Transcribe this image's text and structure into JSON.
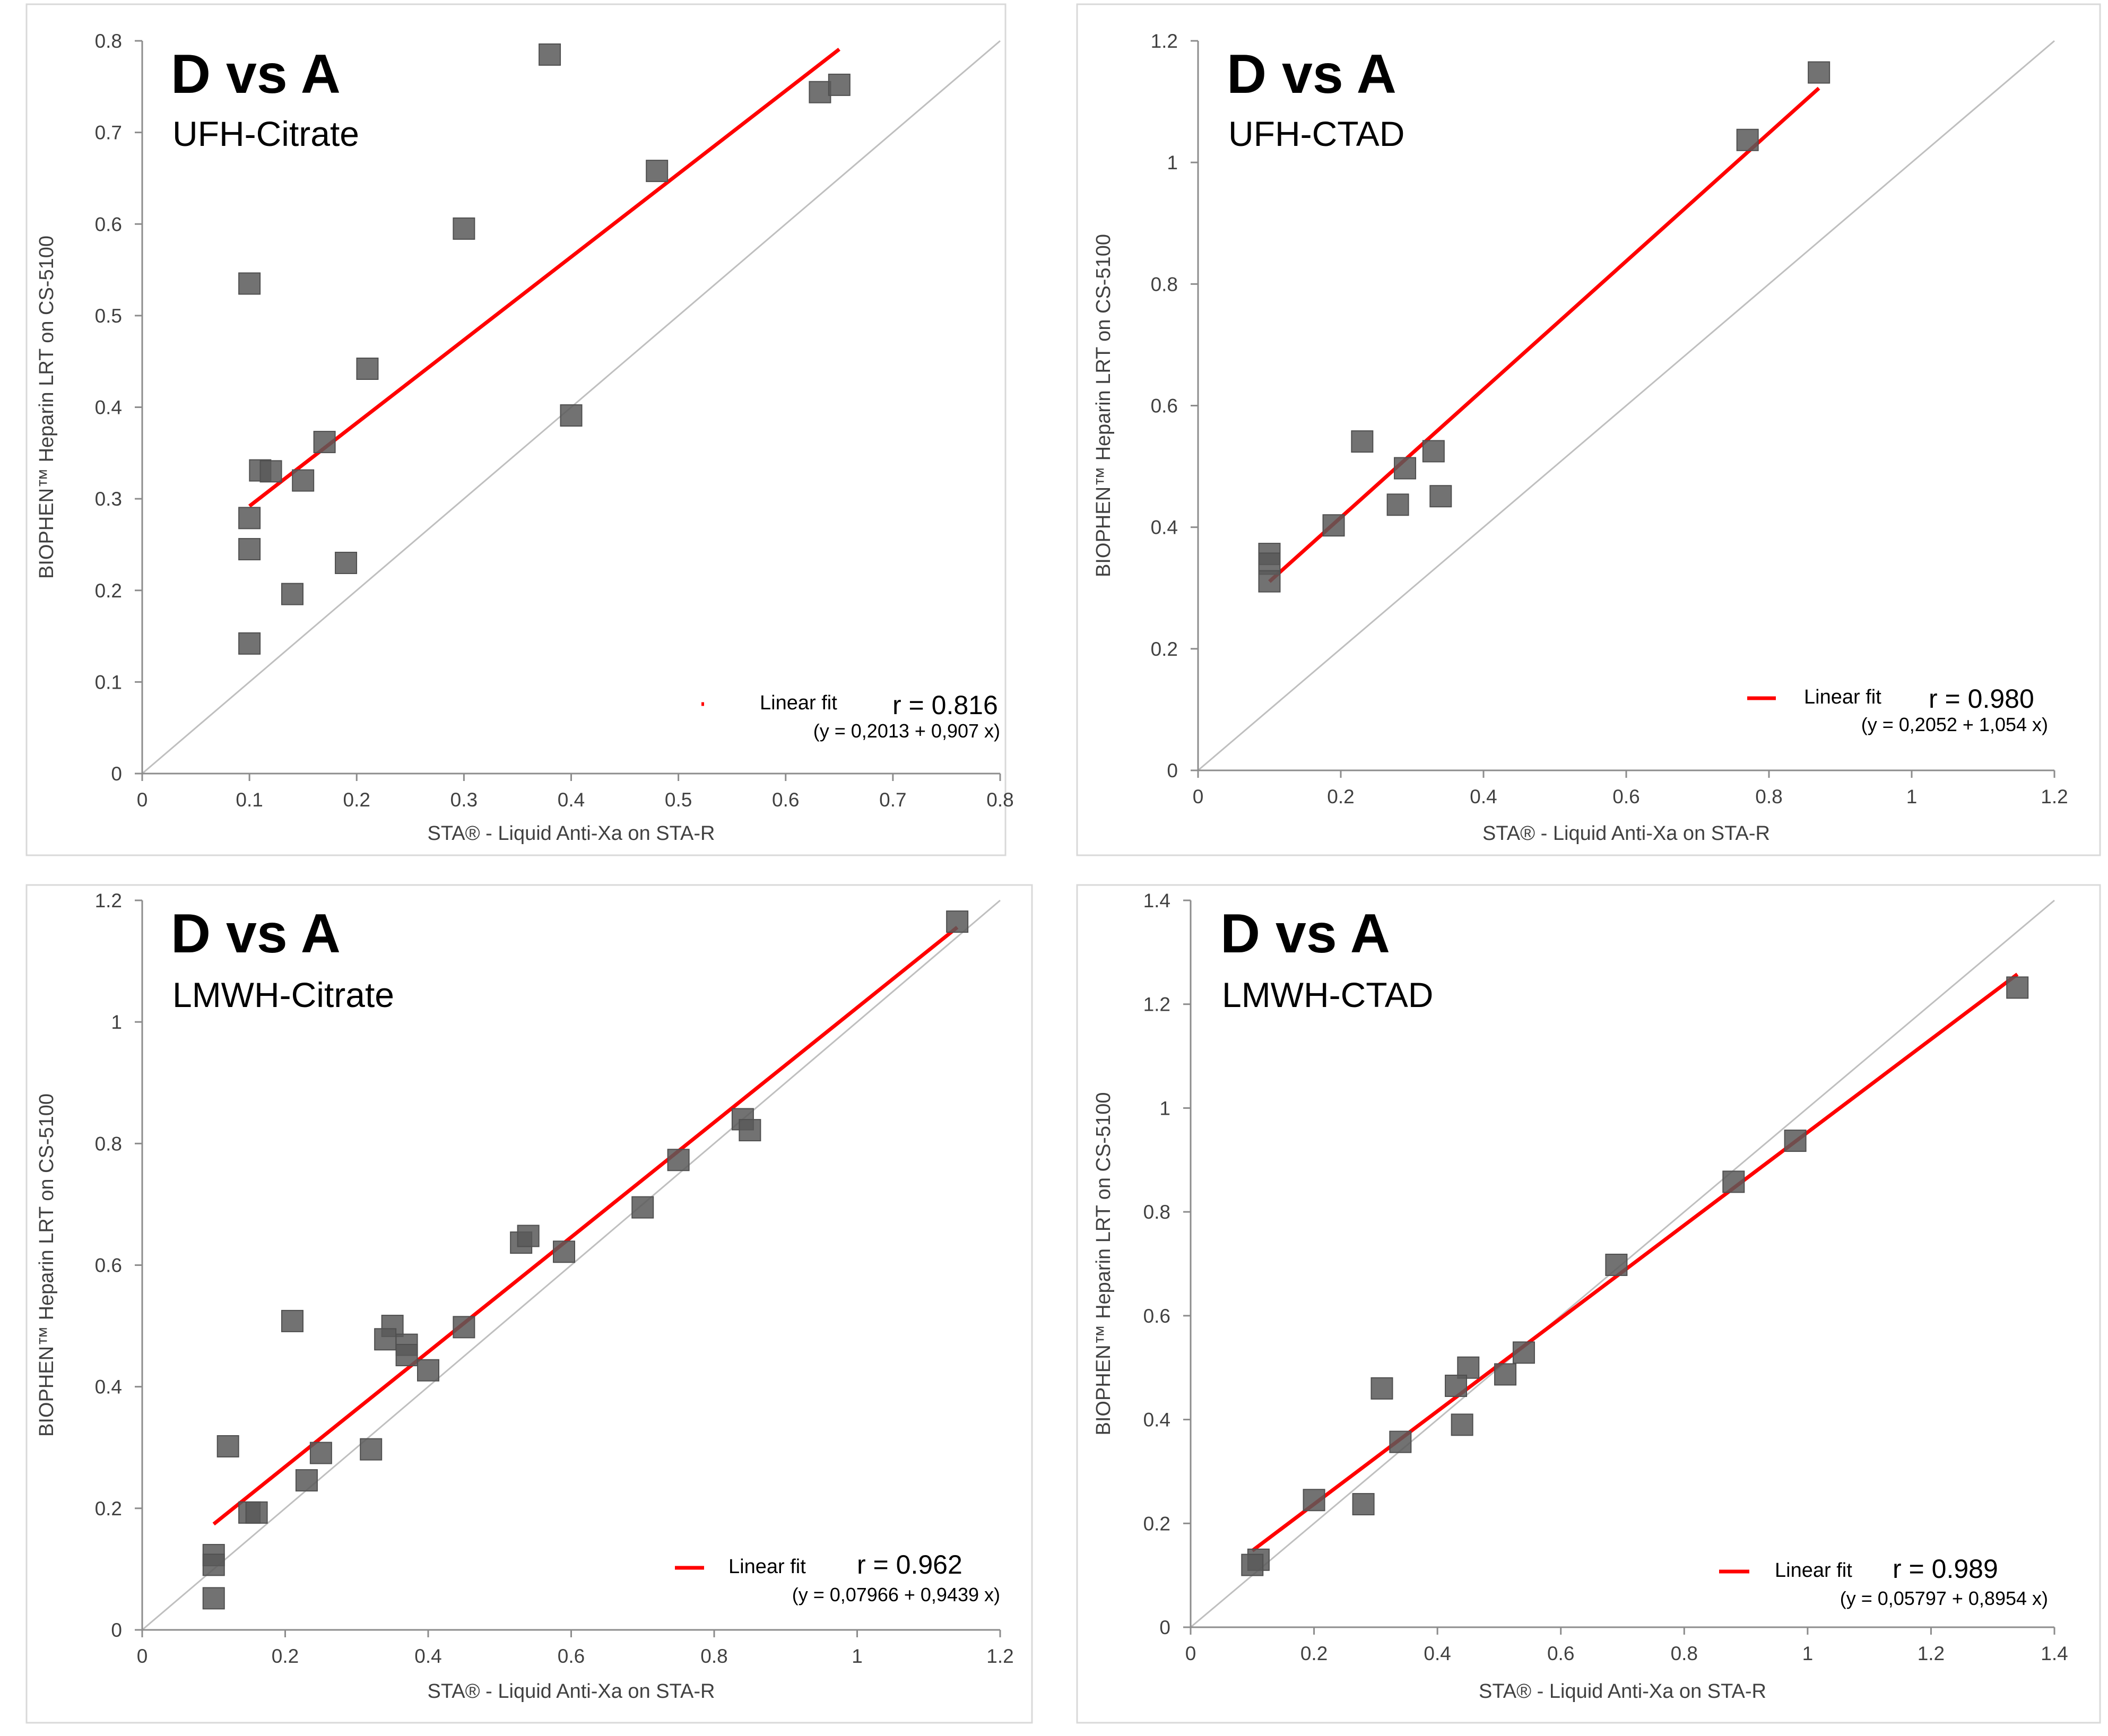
{
  "colors": {
    "fit_line": "#ff0000",
    "point": "#595959",
    "identity_line": "#bfbfbf",
    "axis": "#8c8c8c",
    "text": "#404040"
  },
  "chart_data": [
    {
      "type": "scatter",
      "title": "D vs A",
      "subtitle": "UFH-Citrate",
      "xlabel": "STA® - Liquid Anti-Xa on STA-R",
      "ylabel": "BIOPHEN™ Heparin LRT on CS-5100",
      "xlim": [
        0,
        0.8
      ],
      "ylim": [
        0,
        0.8
      ],
      "x_ticks": [
        0,
        0.1,
        0.2,
        0.3,
        0.4,
        0.5,
        0.6,
        0.7,
        0.8
      ],
      "x_tick_labels": [
        "0",
        "0.1",
        "0.2",
        "0.3",
        "0.4",
        "0.5",
        "0.6",
        "0.7",
        "0.8"
      ],
      "y_ticks": [
        0,
        0.1,
        0.2,
        0.3,
        0.4,
        0.5,
        0.6,
        0.7,
        0.8
      ],
      "y_tick_labels": [
        "0",
        "0.1",
        "0.2",
        "0.3",
        "0.4",
        "0.5",
        "0.6",
        "0.7",
        "0.8"
      ],
      "points": [
        [
          0.1,
          0.535
        ],
        [
          0.38,
          0.785
        ],
        [
          0.3,
          0.595
        ],
        [
          0.48,
          0.658
        ],
        [
          0.632,
          0.744
        ],
        [
          0.65,
          0.752
        ],
        [
          0.21,
          0.442
        ],
        [
          0.17,
          0.362
        ],
        [
          0.11,
          0.331
        ],
        [
          0.12,
          0.33
        ],
        [
          0.15,
          0.32
        ],
        [
          0.1,
          0.279
        ],
        [
          0.1,
          0.245
        ],
        [
          0.14,
          0.196
        ],
        [
          0.19,
          0.23
        ],
        [
          0.1,
          0.142
        ],
        [
          0.4,
          0.391
        ]
      ],
      "fit": {
        "intercept": 0.2013,
        "slope": 0.907,
        "x_range": [
          0.1,
          0.65
        ]
      },
      "legend_label": "Linear fit",
      "r_text": "r = 0.816",
      "equation_text": "(y = 0,2013 + 0,907 x)"
    },
    {
      "type": "scatter",
      "title": "D vs A",
      "subtitle": "UFH-CTAD",
      "xlabel": "STA® - Liquid Anti-Xa on STA-R",
      "ylabel": "BIOPHEN™ Heparin LRT on CS-5100",
      "xlim": [
        0,
        1.2
      ],
      "ylim": [
        0,
        1.2
      ],
      "x_ticks": [
        0,
        0.2,
        0.4,
        0.6,
        0.8,
        1,
        1.2
      ],
      "x_tick_labels": [
        "0",
        "0.2",
        "0.4",
        "0.6",
        "0.8",
        "1",
        "1.2"
      ],
      "y_ticks": [
        0,
        0.2,
        0.4,
        0.6,
        0.8,
        1,
        1.2
      ],
      "y_tick_labels": [
        "0",
        "0.2",
        "0.4",
        "0.6",
        "0.8",
        "1",
        "1.2"
      ],
      "points": [
        [
          0.87,
          1.148
        ],
        [
          0.77,
          1.037
        ],
        [
          0.23,
          0.541
        ],
        [
          0.33,
          0.525
        ],
        [
          0.29,
          0.497
        ],
        [
          0.34,
          0.451
        ],
        [
          0.28,
          0.437
        ],
        [
          0.19,
          0.403
        ],
        [
          0.1,
          0.356
        ],
        [
          0.1,
          0.34
        ],
        [
          0.1,
          0.311
        ]
      ],
      "fit": {
        "intercept": 0.2052,
        "slope": 1.054,
        "x_range": [
          0.1,
          0.87
        ]
      },
      "legend_label": "Linear fit",
      "r_text": "r = 0.980",
      "equation_text": "(y = 0,2052 + 1,054 x)"
    },
    {
      "type": "scatter",
      "title": "D vs A",
      "subtitle": "LMWH-Citrate",
      "xlabel": "STA® - Liquid Anti-Xa on STA-R",
      "ylabel": "BIOPHEN™ Heparin LRT on CS-5100",
      "xlim": [
        0,
        1.2
      ],
      "ylim": [
        0,
        1.2
      ],
      "x_ticks": [
        0,
        0.2,
        0.4,
        0.6,
        0.8,
        1,
        1.2
      ],
      "x_tick_labels": [
        "0",
        "0.2",
        "0.4",
        "0.6",
        "0.8",
        "1",
        "1.2"
      ],
      "y_ticks": [
        0,
        0.2,
        0.4,
        0.6,
        0.8,
        1,
        1.2
      ],
      "y_tick_labels": [
        "0",
        "0.2",
        "0.4",
        "0.6",
        "0.8",
        "1",
        "1.2"
      ],
      "points": [
        [
          1.14,
          1.165
        ],
        [
          0.84,
          0.84
        ],
        [
          0.85,
          0.822
        ],
        [
          0.75,
          0.773
        ],
        [
          0.7,
          0.695
        ],
        [
          0.53,
          0.637
        ],
        [
          0.54,
          0.648
        ],
        [
          0.59,
          0.622
        ],
        [
          0.21,
          0.508
        ],
        [
          0.35,
          0.5
        ],
        [
          0.34,
          0.478
        ],
        [
          0.37,
          0.469
        ],
        [
          0.37,
          0.452
        ],
        [
          0.45,
          0.498
        ],
        [
          0.4,
          0.427
        ],
        [
          0.12,
          0.302
        ],
        [
          0.25,
          0.291
        ],
        [
          0.32,
          0.297
        ],
        [
          0.23,
          0.246
        ],
        [
          0.15,
          0.193
        ],
        [
          0.16,
          0.193
        ],
        [
          0.1,
          0.123
        ],
        [
          0.1,
          0.107
        ],
        [
          0.1,
          0.052
        ]
      ],
      "fit": {
        "intercept": 0.07966,
        "slope": 0.9439,
        "x_range": [
          0.1,
          1.14
        ]
      },
      "legend_label": "Linear fit",
      "r_text": "r = 0.962",
      "equation_text": "(y = 0,07966 + 0,9439 x)"
    },
    {
      "type": "scatter",
      "title": "D vs A",
      "subtitle": "LMWH-CTAD",
      "xlabel": "STA® - Liquid Anti-Xa on STA-R",
      "ylabel": "BIOPHEN™ Heparin LRT on CS-5100",
      "xlim": [
        0,
        1.4
      ],
      "ylim": [
        0,
        1.4
      ],
      "x_ticks": [
        0,
        0.2,
        0.4,
        0.6,
        0.8,
        1,
        1.2,
        1.4
      ],
      "x_tick_labels": [
        "0",
        "0.2",
        "0.4",
        "0.6",
        "0.8",
        "1",
        "1.2",
        "1.4"
      ],
      "y_ticks": [
        0,
        0.2,
        0.4,
        0.6,
        0.8,
        1,
        1.2,
        1.4
      ],
      "y_tick_labels": [
        "0",
        "0.2",
        "0.4",
        "0.6",
        "0.8",
        "1",
        "1.2",
        "1.4"
      ],
      "points": [
        [
          1.34,
          1.232
        ],
        [
          0.98,
          0.937
        ],
        [
          0.88,
          0.858
        ],
        [
          0.69,
          0.698
        ],
        [
          0.54,
          0.529
        ],
        [
          0.51,
          0.487
        ],
        [
          0.45,
          0.5
        ],
        [
          0.43,
          0.465
        ],
        [
          0.31,
          0.46
        ],
        [
          0.44,
          0.39
        ],
        [
          0.34,
          0.357
        ],
        [
          0.2,
          0.245
        ],
        [
          0.28,
          0.237
        ],
        [
          0.11,
          0.13
        ],
        [
          0.1,
          0.12
        ]
      ],
      "fit": {
        "intercept": 0.05797,
        "slope": 0.8954,
        "x_range": [
          0.1,
          1.34
        ]
      },
      "legend_label": "Linear fit",
      "r_text": "r = 0.989",
      "equation_text": "(y = 0,05797 + 0,8954 x)"
    }
  ]
}
